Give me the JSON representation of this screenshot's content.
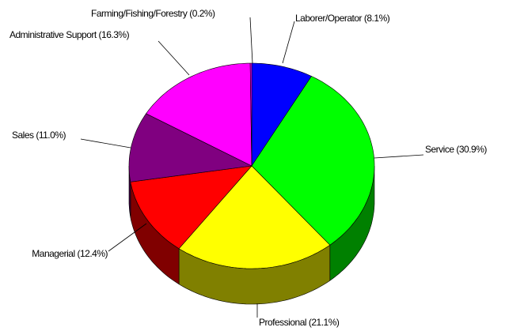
{
  "chart_data": {
    "type": "pie",
    "categories": [
      "Laborer/Operator (8.1%)",
      "Service (30.9%)",
      "Professional (21.1%)",
      "Managerial (12.4%)",
      "Sales (11.0%)",
      "Administrative Support (16.3%)",
      "Farming/Fishing/Forestry (0.2%)"
    ],
    "values": [
      8.1,
      30.9,
      21.1,
      12.4,
      11.0,
      16.3,
      0.2
    ],
    "colors": [
      "#0000ff",
      "#00ff00",
      "#ffff00",
      "#ff0000",
      "#800080",
      "#ff00ff",
      "#ff00ff"
    ]
  }
}
